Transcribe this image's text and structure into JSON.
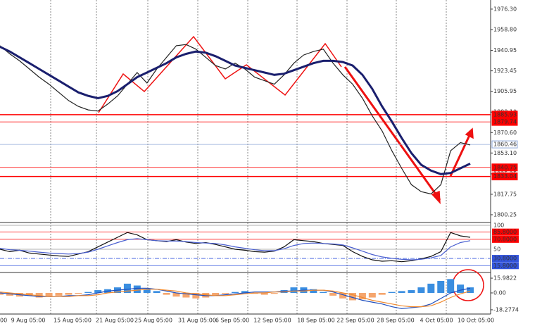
{
  "chart_data": [
    {
      "type": "line",
      "ylim": [
        1794.2,
        1984.1
      ],
      "yticks": [
        {
          "value": 1976.3,
          "label": "1976.30"
        },
        {
          "value": 1958.8,
          "label": "1958.80"
        },
        {
          "value": 1940.95,
          "label": "1940.95"
        },
        {
          "value": 1923.45,
          "label": "1923.45"
        },
        {
          "value": 1905.95,
          "label": "1905.95"
        },
        {
          "value": 1888.1,
          "label": "1888.10"
        },
        {
          "value": 1870.6,
          "label": "1870.60"
        },
        {
          "value": 1853.1,
          "label": "1853.10"
        },
        {
          "value": 1835.25,
          "label": "1835.25"
        },
        {
          "value": 1817.75,
          "label": "1817.75"
        },
        {
          "value": 1800.25,
          "label": "1800.25"
        }
      ],
      "levels": [
        {
          "value": 1885.93,
          "label": "1885.93",
          "color": "#ff0000"
        },
        {
          "value": 1879.74,
          "label": "1879.74",
          "color": "#ff0000"
        },
        {
          "value": 1860.46,
          "label": "1860.46",
          "color": "#8fa8d8"
        },
        {
          "value": 1840.75,
          "label": "1840.75",
          "color": "#ff0000"
        },
        {
          "value": 1833.04,
          "label": "1833.04",
          "color": "#ff0000"
        }
      ],
      "series": [
        {
          "color": "#222222",
          "values": [
            1945,
            1938,
            1932,
            1925,
            1918,
            1912,
            1905,
            1898,
            1893,
            1890,
            1889,
            1895,
            1902,
            1912,
            1922,
            1913,
            1925,
            1935,
            1945,
            1946,
            1942,
            1935,
            1928,
            1925,
            1930,
            1925,
            1918,
            1915,
            1912,
            1920,
            1930,
            1937,
            1940,
            1942,
            1930,
            1920,
            1912,
            1900,
            1885,
            1872,
            1855,
            1840,
            1826,
            1820,
            1818,
            1826,
            1855,
            1862,
            1860
          ]
        },
        {
          "color": "#1a1f6e",
          "values": [
            1944,
            1940,
            1935,
            1930,
            1925,
            1920,
            1915,
            1910,
            1905,
            1902,
            1900,
            1902,
            1906,
            1912,
            1918,
            1922,
            1926,
            1930,
            1935,
            1938,
            1940,
            1939,
            1936,
            1932,
            1928,
            1926,
            1924,
            1922,
            1920,
            1921,
            1924,
            1927,
            1930,
            1932,
            1932,
            1931,
            1928,
            1920,
            1908,
            1893,
            1880,
            1866,
            1853,
            1843,
            1838,
            1835,
            1836,
            1840,
            1844
          ]
        }
      ]
    },
    {
      "type": "line",
      "ylim": [
        0,
        100
      ],
      "yticks": [
        100,
        {
          "value": 85.8,
          "label": "85.8000"
        },
        {
          "value": 70.8,
          "label": "70.8000"
        },
        50,
        {
          "value": 30.8,
          "label": "30.8000"
        },
        {
          "value": 15.8,
          "label": "15.8000"
        }
      ],
      "tick_colors": [
        "#999999",
        "#ff0000",
        "#ff0000",
        "#999999",
        "#3355dd",
        "#3355dd"
      ],
      "series": [
        {
          "color": "#111111",
          "values": [
            50,
            45,
            48,
            42,
            40,
            38,
            36,
            35,
            40,
            45,
            55,
            65,
            75,
            85,
            80,
            70,
            68,
            66,
            70,
            65,
            62,
            64,
            60,
            55,
            50,
            48,
            45,
            44,
            46,
            55,
            70,
            68,
            66,
            62,
            60,
            58,
            45,
            35,
            28,
            25,
            26,
            24,
            26,
            30,
            35,
            45,
            85,
            78,
            75
          ]
        },
        {
          "color": "#4a5fd0",
          "values": [
            52,
            49,
            48,
            46,
            44,
            42,
            41,
            40,
            41,
            44,
            50,
            57,
            64,
            70,
            72,
            70,
            68,
            67,
            67,
            66,
            64,
            63,
            62,
            59,
            55,
            52,
            49,
            47,
            47,
            51,
            58,
            62,
            63,
            62,
            61,
            59,
            53,
            46,
            39,
            34,
            31,
            29,
            28,
            29,
            32,
            37,
            55,
            64,
            68
          ]
        }
      ]
    },
    {
      "type": "bar",
      "ylim": [
        -22.9,
        20.6
      ],
      "yticks": [
        15.9822,
        {
          "value": 0,
          "label": "0.00"
        },
        -18.2774
      ],
      "colors": {
        "positive": "#3a8ee0",
        "negative": "#f5a66e"
      },
      "values": [
        -2,
        -3,
        -4,
        -3,
        -5,
        -4,
        -3,
        -2,
        -1,
        1,
        3,
        4,
        6,
        10,
        8,
        4,
        2,
        -2,
        -4,
        -5,
        -6,
        -5,
        -3,
        -1,
        1,
        2,
        -1,
        -2,
        -1,
        3,
        6,
        6,
        4,
        1,
        -3,
        -6,
        -8,
        -7,
        -5,
        -2,
        1,
        2,
        3,
        6,
        10,
        13,
        15,
        9,
        6
      ],
      "series": [
        {
          "color": "#1f4fbf",
          "values": [
            0,
            -1,
            -2,
            -3,
            -4,
            -4,
            -4,
            -3,
            -3,
            -2,
            0,
            2,
            3,
            4,
            5,
            5,
            4,
            2,
            0,
            -1,
            -2,
            -3,
            -3,
            -2,
            -1,
            0,
            1,
            1,
            1,
            2,
            2,
            3,
            3,
            3,
            1,
            -2,
            -5,
            -8,
            -10,
            -12,
            -15,
            -17,
            -16,
            -15,
            -12,
            -6,
            0,
            3,
            5
          ]
        },
        {
          "color": "#f08a30",
          "values": [
            1,
            0,
            -1,
            -2,
            -3,
            -4,
            -4,
            -4,
            -3,
            -3,
            -2,
            0,
            1,
            2,
            3,
            4,
            4,
            3,
            2,
            0,
            -1,
            -2,
            -3,
            -3,
            -2,
            -1,
            0,
            0,
            1,
            1,
            2,
            2,
            3,
            3,
            2,
            0,
            -2,
            -5,
            -8,
            -10,
            -12,
            -14,
            -15,
            -15,
            -14,
            -10,
            -5,
            -1,
            2
          ]
        }
      ],
      "x_labels": [
        "00",
        "9 Aug 05:00",
        "15 Aug 05:00",
        "21 Aug 05:00",
        "25 Aug 05:00",
        "31 Aug 05:00",
        "6 Sep 05:00",
        "12 Sep 05:00",
        "18 Sep 05:00",
        "22 Sep 05:00",
        "28 Sep 05:00",
        "4 Oct 05:00",
        "10 Oct 05:00"
      ]
    }
  ]
}
